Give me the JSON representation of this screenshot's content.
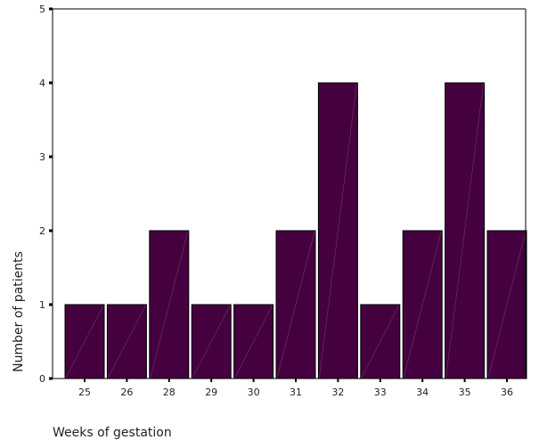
{
  "chart_data": {
    "type": "bar",
    "categories": [
      "25",
      "26",
      "28",
      "29",
      "30",
      "31",
      "32",
      "33",
      "34",
      "35",
      "36"
    ],
    "values": [
      1,
      1,
      2,
      1,
      1,
      2,
      4,
      1,
      2,
      4,
      2
    ],
    "title": "",
    "xlabel": "Weeks of gestation",
    "ylabel": "Number of patients",
    "ylim": [
      0,
      5
    ],
    "yticks": [
      0,
      1,
      2,
      3,
      4,
      5
    ],
    "grid": false,
    "legend": "none",
    "bar_color": "#44003f",
    "bar_outline": "#000000",
    "axis_color": "#000000"
  }
}
